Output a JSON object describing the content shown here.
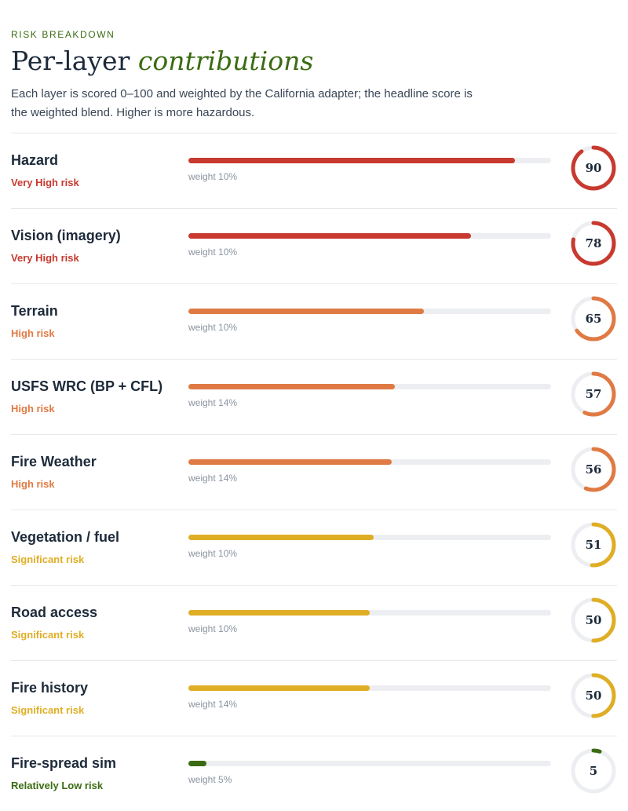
{
  "header": {
    "eyebrow": "RISK BREAKDOWN",
    "title_main": "Per-layer ",
    "title_emphasis": "contributions",
    "description": "Each layer is scored 0–100 and weighted by the California adapter; the headline score is the weighted blend. Higher is more hazardous."
  },
  "colors": {
    "very_high": "#c8392f",
    "high": "#e07a44",
    "significant": "#dfae25",
    "low": "#3b6b12",
    "track": "#eceef1"
  },
  "layers": [
    {
      "name": "Hazard",
      "risk": "Very High risk",
      "level": "very_high",
      "score": 90,
      "score_label": "90",
      "weight": "weight 10%"
    },
    {
      "name": "Vision (imagery)",
      "risk": "Very High risk",
      "level": "very_high",
      "score": 78,
      "score_label": "78",
      "weight": "weight 10%"
    },
    {
      "name": "Terrain",
      "risk": "High risk",
      "level": "high",
      "score": 65,
      "score_label": "65",
      "weight": "weight 10%"
    },
    {
      "name": "USFS WRC (BP + CFL)",
      "risk": "High risk",
      "level": "high",
      "score": 57,
      "score_label": "57",
      "weight": "weight 14%"
    },
    {
      "name": "Fire Weather",
      "risk": "High risk",
      "level": "high",
      "score": 56,
      "score_label": "56",
      "weight": "weight 14%"
    },
    {
      "name": "Vegetation / fuel",
      "risk": "Significant risk",
      "level": "significant",
      "score": 51,
      "score_label": "51",
      "weight": "weight 10%"
    },
    {
      "name": "Road access",
      "risk": "Significant risk",
      "level": "significant",
      "score": 50,
      "score_label": "50",
      "weight": "weight 10%"
    },
    {
      "name": "Fire history",
      "risk": "Significant risk",
      "level": "significant",
      "score": 50,
      "score_label": "50",
      "weight": "weight 14%"
    },
    {
      "name": "Fire-spread sim",
      "risk": "Relatively Low risk",
      "level": "low",
      "score": 5,
      "score_label": "5",
      "weight": "weight 5%"
    }
  ]
}
